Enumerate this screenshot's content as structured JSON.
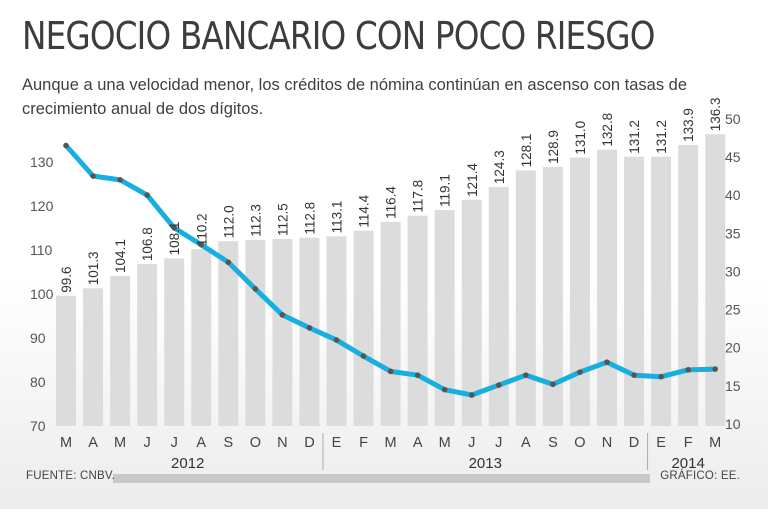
{
  "title": "NEGOCIO BANCARIO CON POCO RIESGO",
  "subtitle": "Aunque a una velocidad menor, los créditos de nómina continúan en ascenso con tasas de crecimiento anual de dos dígitos.",
  "source": "FUENTE: CNBV.",
  "credit": "GRÁFICO: EE.",
  "colors": {
    "bar": "#dcdcdc",
    "line": "#18aee0",
    "marker": "#555555",
    "divider": "#aaaaaa"
  },
  "chart_data": {
    "type": "bar+line",
    "categories": [
      "M",
      "A",
      "M",
      "J",
      "J",
      "A",
      "S",
      "O",
      "N",
      "D",
      "E",
      "F",
      "M",
      "A",
      "M",
      "J",
      "J",
      "A",
      "S",
      "O",
      "N",
      "D",
      "E",
      "F",
      "M"
    ],
    "years": [
      {
        "label": "2012",
        "count": 10
      },
      {
        "label": "2013",
        "count": 12
      },
      {
        "label": "2014",
        "count": 3
      }
    ],
    "series": [
      {
        "name": "bars",
        "axis": "left",
        "values": [
          99.6,
          101.3,
          104.1,
          106.8,
          108.1,
          110.2,
          112.0,
          112.3,
          112.5,
          112.8,
          113.1,
          114.4,
          116.4,
          117.8,
          119.1,
          121.4,
          124.3,
          128.1,
          128.9,
          131.0,
          132.8,
          131.2,
          131.2,
          133.9,
          136.3
        ],
        "labels": [
          "99.6",
          "101.3",
          "104.1",
          "106.8",
          "108.1",
          "110.2",
          "112.0",
          "112.3",
          "112.5",
          "112.8",
          "113.1",
          "114.4",
          "116.4",
          "117.8",
          "119.1",
          "121.4",
          "124.3",
          "128.1",
          "128.9",
          "131.0",
          "132.8",
          "131.2",
          "131.2",
          "133.9",
          "136.3"
        ]
      },
      {
        "name": "line",
        "axis": "right",
        "values": [
          46.5,
          42.5,
          42.0,
          40.0,
          35.7,
          33.5,
          31.2,
          27.7,
          24.3,
          22.6,
          21.0,
          18.9,
          16.9,
          16.4,
          14.5,
          13.8,
          15.1,
          16.4,
          15.2,
          16.8,
          18.1,
          16.4,
          16.2,
          17.1,
          17.2
        ]
      }
    ],
    "left_axis": {
      "ylim": [
        70,
        140
      ],
      "ticks": [
        "70",
        "80",
        "90",
        "100",
        "110",
        "120",
        "130"
      ],
      "tick_values": [
        70,
        80,
        90,
        100,
        110,
        120,
        130
      ]
    },
    "right_axis": {
      "ylim": [
        10,
        50
      ],
      "ticks": [
        "10",
        "15",
        "20",
        "25",
        "30",
        "35",
        "40",
        "45",
        "50"
      ],
      "tick_values": [
        10,
        15,
        20,
        25,
        30,
        35,
        40,
        45,
        50
      ]
    }
  }
}
